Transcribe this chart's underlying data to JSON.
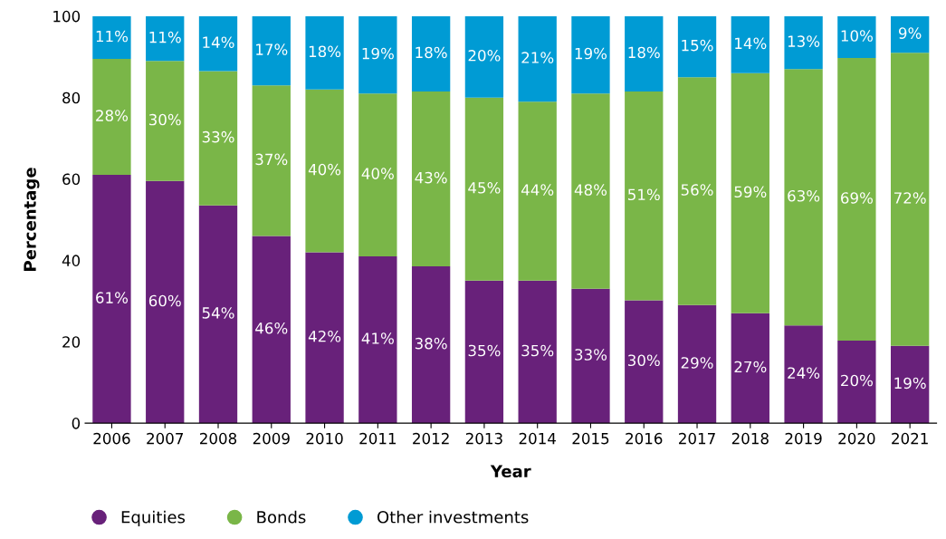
{
  "chart_data": {
    "type": "bar",
    "stacked": true,
    "xlabel": "Year",
    "ylabel": "Percentage",
    "categories": [
      "2006",
      "2007",
      "2008",
      "2009",
      "2010",
      "2011",
      "2012",
      "2013",
      "2014",
      "2015",
      "2016",
      "2017",
      "2018",
      "2019",
      "2020",
      "2021"
    ],
    "ylim": [
      0,
      100
    ],
    "yticks": [
      0,
      20,
      40,
      60,
      80,
      100
    ],
    "legend": "bottom left",
    "series": [
      {
        "name": "Equities",
        "color": "#68217a",
        "values": [
          61,
          59.5,
          53.5,
          46,
          42,
          41,
          38.5,
          35,
          35,
          33,
          30.2,
          29,
          27,
          24,
          20.3,
          19
        ],
        "value_labels": [
          "61%",
          "60%",
          "54%",
          "46%",
          "42%",
          "41%",
          "38%",
          "35%",
          "35%",
          "33%",
          "30%",
          "29%",
          "27%",
          "24%",
          "20%",
          "19%"
        ]
      },
      {
        "name": "Bonds",
        "color": "#7ab648",
        "values": [
          28.5,
          29.5,
          33,
          37,
          40,
          40,
          43,
          45,
          44,
          48,
          51.3,
          56,
          59,
          63,
          69.4,
          72
        ],
        "value_labels": [
          "28%",
          "30%",
          "33%",
          "37%",
          "40%",
          "40%",
          "43%",
          "45%",
          "44%",
          "48%",
          "51%",
          "56%",
          "59%",
          "63%",
          "69%",
          "72%"
        ]
      },
      {
        "name": "Other investments",
        "color": "#009bd4",
        "values": [
          10.5,
          11,
          13.5,
          17,
          18,
          19,
          18.5,
          20,
          21,
          19,
          18.5,
          15,
          14,
          13,
          10.3,
          9
        ],
        "value_labels": [
          "11%",
          "11%",
          "14%",
          "17%",
          "18%",
          "19%",
          "18%",
          "20%",
          "21%",
          "19%",
          "18%",
          "15%",
          "14%",
          "13%",
          "10%",
          "9%"
        ]
      }
    ]
  }
}
